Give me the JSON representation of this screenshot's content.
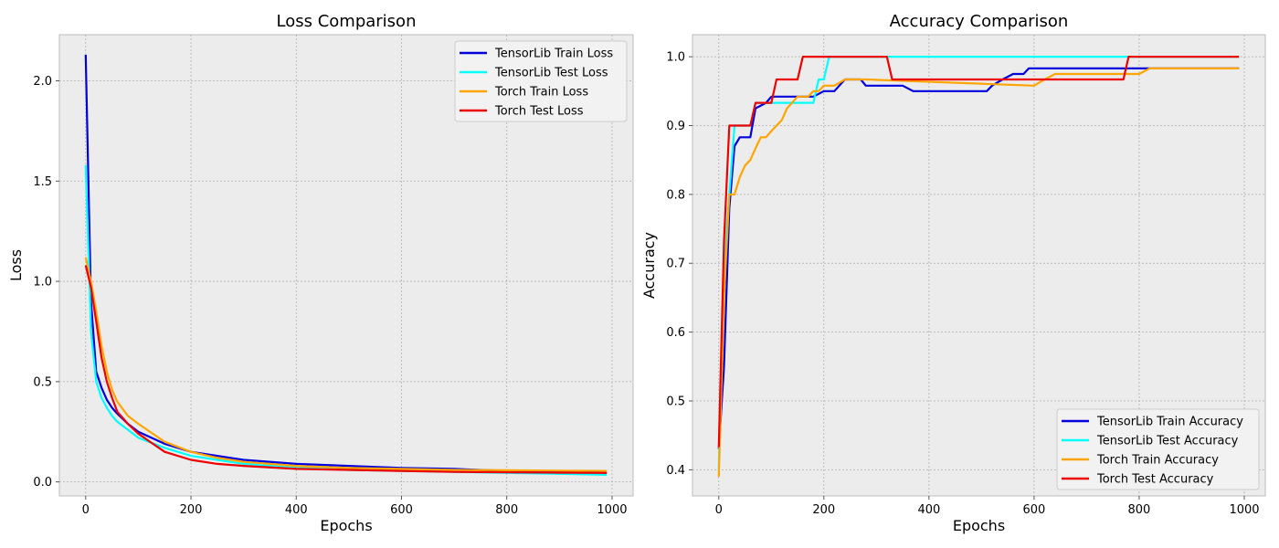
{
  "chart_data": [
    {
      "type": "line",
      "title": "Loss Comparison",
      "xlabel": "Epochs",
      "ylabel": "Loss",
      "xlim": [
        -50,
        1040
      ],
      "ylim": [
        -0.07,
        2.23
      ],
      "xticks": [
        0,
        200,
        400,
        600,
        800,
        1000
      ],
      "yticks": [
        0.0,
        0.5,
        1.0,
        1.5,
        2.0
      ],
      "xtick_labels": [
        "0",
        "200",
        "400",
        "600",
        "800",
        "1000"
      ],
      "ytick_labels": [
        "0.0",
        "0.5",
        "1.0",
        "1.5",
        "2.0"
      ],
      "grid": true,
      "legend_position": "top-right",
      "series": [
        {
          "name": "TensorLib Train Loss",
          "color": "#0000dd",
          "x": [
            0,
            10,
            20,
            30,
            40,
            50,
            60,
            80,
            100,
            150,
            200,
            250,
            300,
            400,
            500,
            600,
            700,
            800,
            900,
            990
          ],
          "y": [
            2.13,
            0.9,
            0.55,
            0.47,
            0.41,
            0.37,
            0.34,
            0.29,
            0.25,
            0.19,
            0.15,
            0.13,
            0.11,
            0.09,
            0.08,
            0.07,
            0.065,
            0.055,
            0.05,
            0.045
          ]
        },
        {
          "name": "TensorLib Test Loss",
          "color": "#00ffff",
          "x": [
            0,
            10,
            20,
            30,
            40,
            50,
            60,
            80,
            100,
            150,
            200,
            250,
            300,
            400,
            500,
            600,
            700,
            800,
            900,
            990
          ],
          "y": [
            1.58,
            0.75,
            0.5,
            0.42,
            0.37,
            0.33,
            0.3,
            0.26,
            0.22,
            0.17,
            0.13,
            0.11,
            0.09,
            0.07,
            0.06,
            0.055,
            0.05,
            0.045,
            0.04,
            0.035
          ]
        },
        {
          "name": "Torch Train Loss",
          "color": "#ffa500",
          "x": [
            0,
            10,
            20,
            30,
            40,
            50,
            60,
            80,
            100,
            150,
            200,
            250,
            300,
            400,
            500,
            600,
            700,
            800,
            900,
            990
          ],
          "y": [
            1.12,
            1.0,
            0.85,
            0.68,
            0.55,
            0.46,
            0.4,
            0.33,
            0.29,
            0.2,
            0.15,
            0.12,
            0.1,
            0.08,
            0.07,
            0.065,
            0.06,
            0.058,
            0.056,
            0.055
          ]
        },
        {
          "name": "Torch Test Loss",
          "color": "#ee0000",
          "x": [
            0,
            10,
            20,
            30,
            40,
            50,
            60,
            80,
            100,
            150,
            200,
            250,
            300,
            400,
            500,
            600,
            700,
            800,
            900,
            990
          ],
          "y": [
            1.08,
            0.97,
            0.8,
            0.62,
            0.5,
            0.42,
            0.35,
            0.29,
            0.24,
            0.15,
            0.11,
            0.09,
            0.08,
            0.065,
            0.06,
            0.055,
            0.05,
            0.048,
            0.046,
            0.045
          ]
        }
      ]
    },
    {
      "type": "line",
      "title": "Accuracy Comparison",
      "xlabel": "Epochs",
      "ylabel": "Accuracy",
      "xlim": [
        -50,
        1040
      ],
      "ylim": [
        0.362,
        1.032
      ],
      "xticks": [
        0,
        200,
        400,
        600,
        800,
        1000
      ],
      "yticks": [
        0.4,
        0.5,
        0.6,
        0.7,
        0.8,
        0.9,
        1.0
      ],
      "xtick_labels": [
        "0",
        "200",
        "400",
        "600",
        "800",
        "1000"
      ],
      "ytick_labels": [
        "0.4",
        "0.5",
        "0.6",
        "0.7",
        "0.8",
        "0.9",
        "1.0"
      ],
      "grid": true,
      "legend_position": "bottom-right",
      "series": [
        {
          "name": "TensorLib Train Accuracy",
          "color": "#0000dd",
          "x": [
            0,
            10,
            20,
            30,
            40,
            60,
            70,
            90,
            100,
            180,
            200,
            220,
            240,
            270,
            280,
            350,
            370,
            510,
            520,
            540,
            560,
            580,
            590,
            780,
            800,
            990
          ],
          "y": [
            0.43,
            0.55,
            0.78,
            0.87,
            0.883,
            0.883,
            0.925,
            0.933,
            0.942,
            0.942,
            0.95,
            0.95,
            0.967,
            0.967,
            0.958,
            0.958,
            0.95,
            0.95,
            0.958,
            0.967,
            0.975,
            0.975,
            0.983,
            0.983,
            0.983,
            0.983
          ]
        },
        {
          "name": "TensorLib Test Accuracy",
          "color": "#00ffff",
          "x": [
            0,
            10,
            20,
            30,
            60,
            70,
            80,
            180,
            190,
            200,
            210,
            980,
            990
          ],
          "y": [
            0.4,
            0.7,
            0.8,
            0.9,
            0.9,
            0.933,
            0.933,
            0.933,
            0.967,
            0.967,
            1.0,
            1.0,
            1.0
          ]
        },
        {
          "name": "Torch Train Accuracy",
          "color": "#ffa500",
          "x": [
            0,
            10,
            20,
            30,
            40,
            50,
            60,
            70,
            80,
            90,
            100,
            120,
            130,
            150,
            170,
            180,
            190,
            200,
            220,
            240,
            260,
            280,
            600,
            620,
            640,
            800,
            820,
            990
          ],
          "y": [
            0.39,
            0.65,
            0.8,
            0.8,
            0.825,
            0.842,
            0.85,
            0.867,
            0.883,
            0.883,
            0.892,
            0.908,
            0.925,
            0.942,
            0.942,
            0.95,
            0.95,
            0.958,
            0.958,
            0.967,
            0.967,
            0.967,
            0.958,
            0.967,
            0.975,
            0.975,
            0.983,
            0.983
          ]
        },
        {
          "name": "Torch Test Accuracy",
          "color": "#ee0000",
          "x": [
            0,
            10,
            20,
            60,
            70,
            100,
            110,
            150,
            160,
            320,
            330,
            770,
            780,
            990
          ],
          "y": [
            0.433,
            0.733,
            0.9,
            0.9,
            0.933,
            0.933,
            0.967,
            0.967,
            1.0,
            1.0,
            0.967,
            0.967,
            1.0,
            1.0
          ]
        }
      ]
    }
  ]
}
